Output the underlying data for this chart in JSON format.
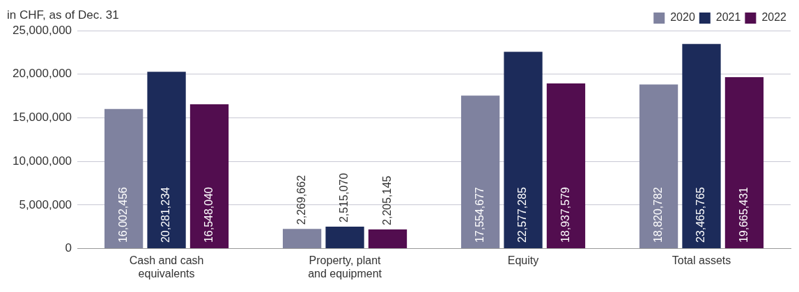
{
  "chart_data": {
    "type": "bar",
    "title": "in CHF, as of Dec. 31",
    "categories": [
      "Cash and cash equivalents",
      "Property, plant and equipment",
      "Equity",
      "Total assets"
    ],
    "series": [
      {
        "name": "2020",
        "color": "#7f829f",
        "values": [
          16002456,
          2269662,
          17554677,
          18820782
        ],
        "value_labels": [
          "16,002,456",
          "2,269,662",
          "17,554,677",
          "18,820,782"
        ]
      },
      {
        "name": "2021",
        "color": "#1c2b5a",
        "values": [
          20281234,
          2515070,
          22577285,
          23465765
        ],
        "value_labels": [
          "20,281,234",
          "2,515,070",
          "22,577,285",
          "23,465,765"
        ]
      },
      {
        "name": "2022",
        "color": "#520d4f",
        "values": [
          16548040,
          2205145,
          18937579,
          19665431
        ],
        "value_labels": [
          "16,548,040",
          "2,205,145",
          "18,937,579",
          "19,665,431"
        ]
      }
    ],
    "ylim": [
      0,
      25000000
    ],
    "yticks": [
      0,
      {
        "value": 5000000,
        "label": "5,000,000"
      },
      {
        "value": 10000000,
        "label": "10,000,000"
      },
      {
        "value": 15000000,
        "label": "15,000,000"
      },
      {
        "value": 20000000,
        "label": "20,000,000"
      },
      {
        "value": 25000000,
        "label": "25,000,000"
      }
    ],
    "grid": "y",
    "legend": "top right"
  }
}
